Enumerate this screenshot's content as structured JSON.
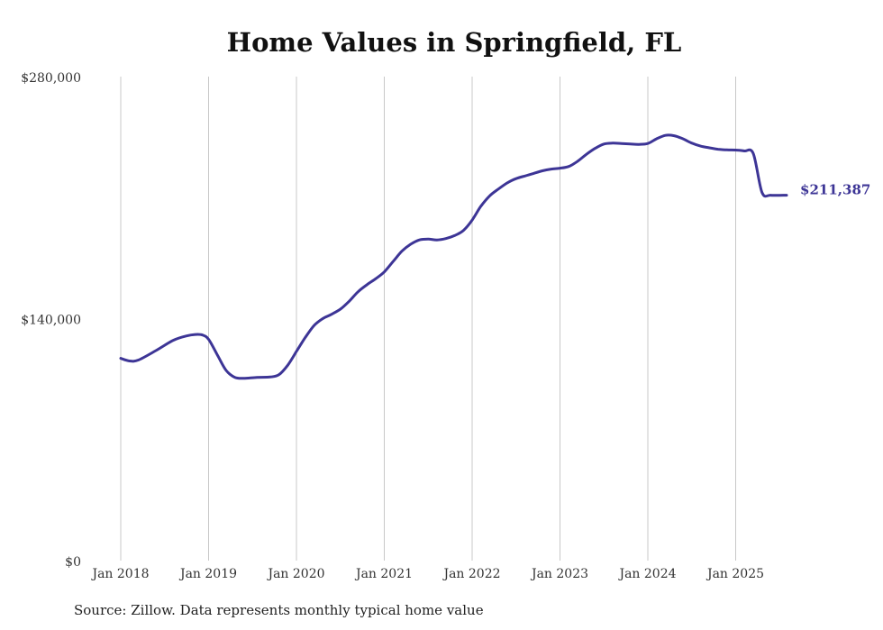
{
  "chart_data": {
    "type": "line",
    "title": "Home Values in Springfield, FL",
    "xlabel": "",
    "ylabel": "",
    "ylim": [
      0,
      280000
    ],
    "yticks": [
      {
        "value": 0,
        "label": "$0"
      },
      {
        "value": 140000,
        "label": "$140,000"
      },
      {
        "value": 280000,
        "label": "$280,000"
      }
    ],
    "xticks": [
      {
        "value": 2018.0,
        "label": "Jan 2018"
      },
      {
        "value": 2019.0,
        "label": "Jan 2019"
      },
      {
        "value": 2020.0,
        "label": "Jan 2020"
      },
      {
        "value": 2021.0,
        "label": "Jan 2021"
      },
      {
        "value": 2022.0,
        "label": "Jan 2022"
      },
      {
        "value": 2023.0,
        "label": "Jan 2023"
      },
      {
        "value": 2024.0,
        "label": "Jan 2024"
      },
      {
        "value": 2025.0,
        "label": "Jan 2025"
      }
    ],
    "grid": "vertical",
    "line_color": "#3d3596",
    "series": [
      {
        "name": "",
        "x": [
          2018.0,
          2018.1,
          2018.2,
          2018.4,
          2018.6,
          2018.75,
          2018.85,
          2018.93,
          2019.0,
          2019.1,
          2019.2,
          2019.3,
          2019.4,
          2019.55,
          2019.7,
          2019.8,
          2019.9,
          2020.0,
          2020.1,
          2020.2,
          2020.3,
          2020.4,
          2020.5,
          2020.6,
          2020.7,
          2020.8,
          2020.9,
          2021.0,
          2021.1,
          2021.2,
          2021.3,
          2021.4,
          2021.5,
          2021.6,
          2021.7,
          2021.8,
          2021.9,
          2022.0,
          2022.1,
          2022.2,
          2022.3,
          2022.4,
          2022.5,
          2022.6,
          2022.7,
          2022.8,
          2022.9,
          2023.0,
          2023.1,
          2023.2,
          2023.3,
          2023.4,
          2023.5,
          2023.6,
          2023.7,
          2023.8,
          2023.9,
          2024.0,
          2024.1,
          2024.2,
          2024.3,
          2024.4,
          2024.5,
          2024.6,
          2024.7,
          2024.8,
          2024.9,
          2025.0,
          2025.1,
          2025.2,
          2025.3,
          2025.4,
          2025.58
        ],
        "values": [
          117000,
          115500,
          116000,
          121500,
          127500,
          130000,
          130800,
          130500,
          128000,
          119000,
          110000,
          106000,
          105500,
          106000,
          106200,
          107500,
          113000,
          121000,
          129000,
          136000,
          140000,
          142500,
          145500,
          150000,
          155500,
          159500,
          163000,
          167000,
          173000,
          179000,
          183000,
          185500,
          186000,
          185500,
          186300,
          188000,
          191000,
          197000,
          205000,
          211000,
          215000,
          218500,
          221000,
          222500,
          224000,
          225500,
          226500,
          227000,
          228000,
          231000,
          235000,
          238500,
          241000,
          241500,
          241300,
          241000,
          240800,
          241300,
          244000,
          246000,
          245800,
          244000,
          241500,
          239800,
          238800,
          238000,
          237600,
          237500,
          237000,
          235500,
          213000,
          211387,
          211387
        ]
      }
    ],
    "end_label": "$211,387",
    "source": "Source: Zillow. Data represents monthly typical home value"
  }
}
